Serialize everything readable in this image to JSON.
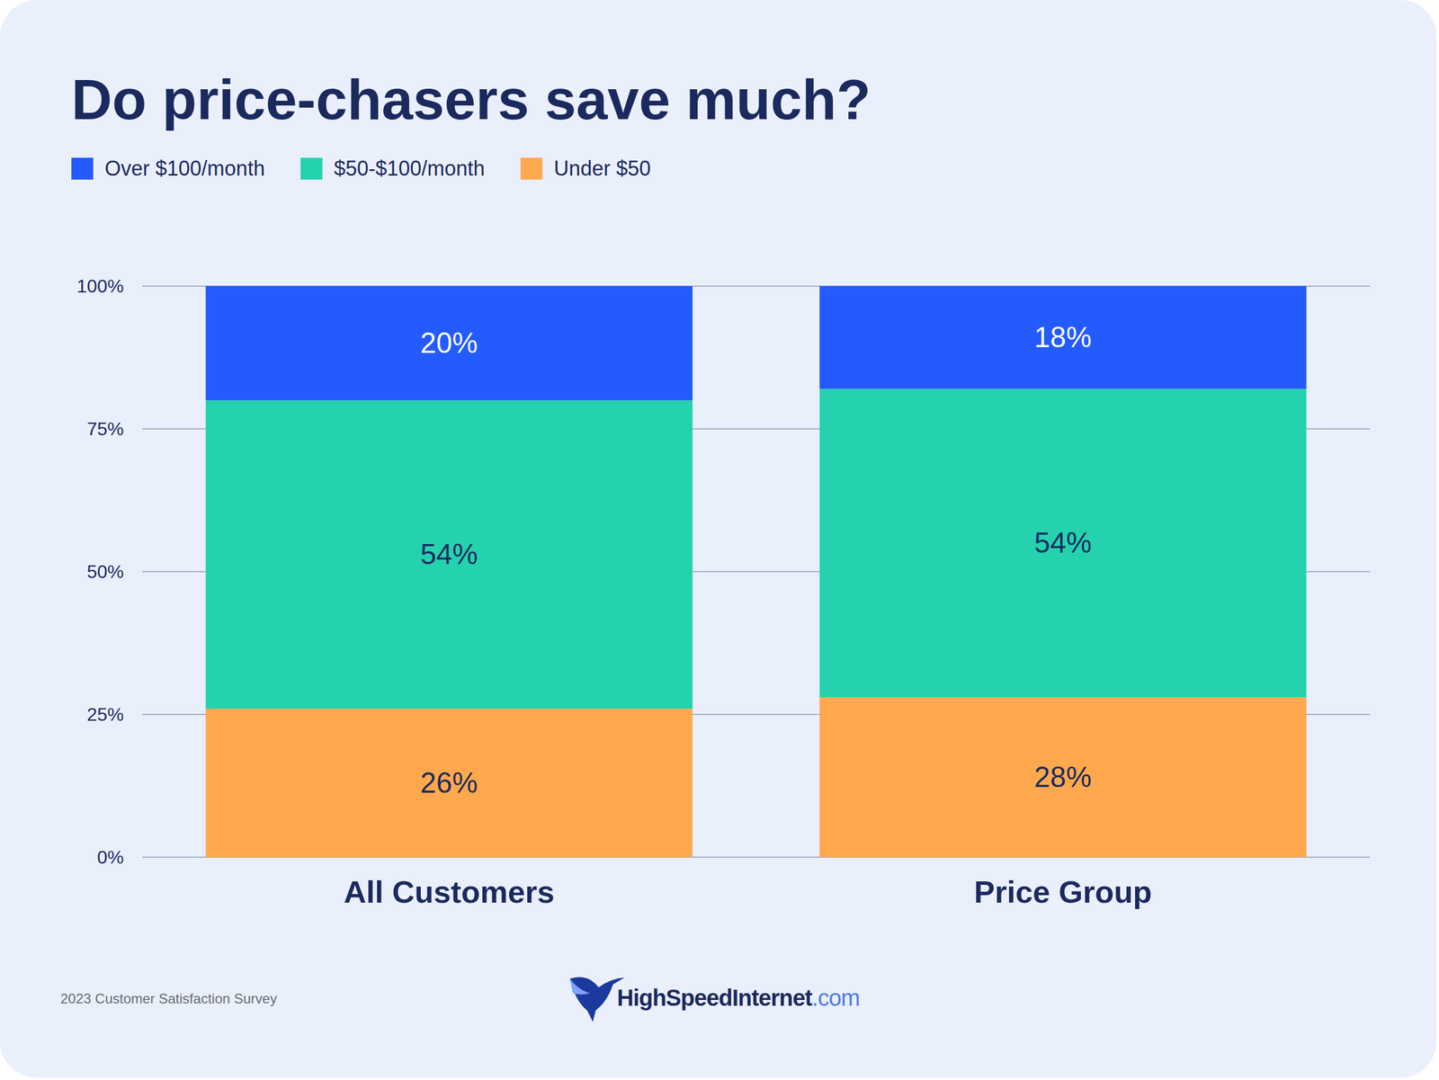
{
  "chart_data": {
    "type": "bar",
    "stacked": true,
    "data_labels": true,
    "grid": true,
    "title": "Do price-chasers save much?",
    "categories": [
      "All Customers",
      "Price Group"
    ],
    "series": [
      {
        "name": "Under $50",
        "color": "#FFA84D",
        "values": [
          26,
          28
        ],
        "value_labels": [
          "26%",
          "28%"
        ]
      },
      {
        "name": "$50-$100/month",
        "color": "#24D3AE",
        "values": [
          54,
          54
        ],
        "value_labels": [
          "54%",
          "54%"
        ]
      },
      {
        "name": "Over $100/month",
        "color": "#245BFF",
        "values": [
          20,
          18
        ],
        "value_labels": [
          "20%",
          "18%"
        ]
      }
    ],
    "ylim": [
      0,
      100
    ],
    "yticks": [
      {
        "value": 0,
        "label": "0%"
      },
      {
        "value": 25,
        "label": "25%"
      },
      {
        "value": 50,
        "label": "50%"
      },
      {
        "value": 75,
        "label": "75%"
      },
      {
        "value": 100,
        "label": "100%"
      }
    ],
    "source": "2023 Customer Satisfaction Survey",
    "logo": "HighSpeedInternet.com"
  }
}
